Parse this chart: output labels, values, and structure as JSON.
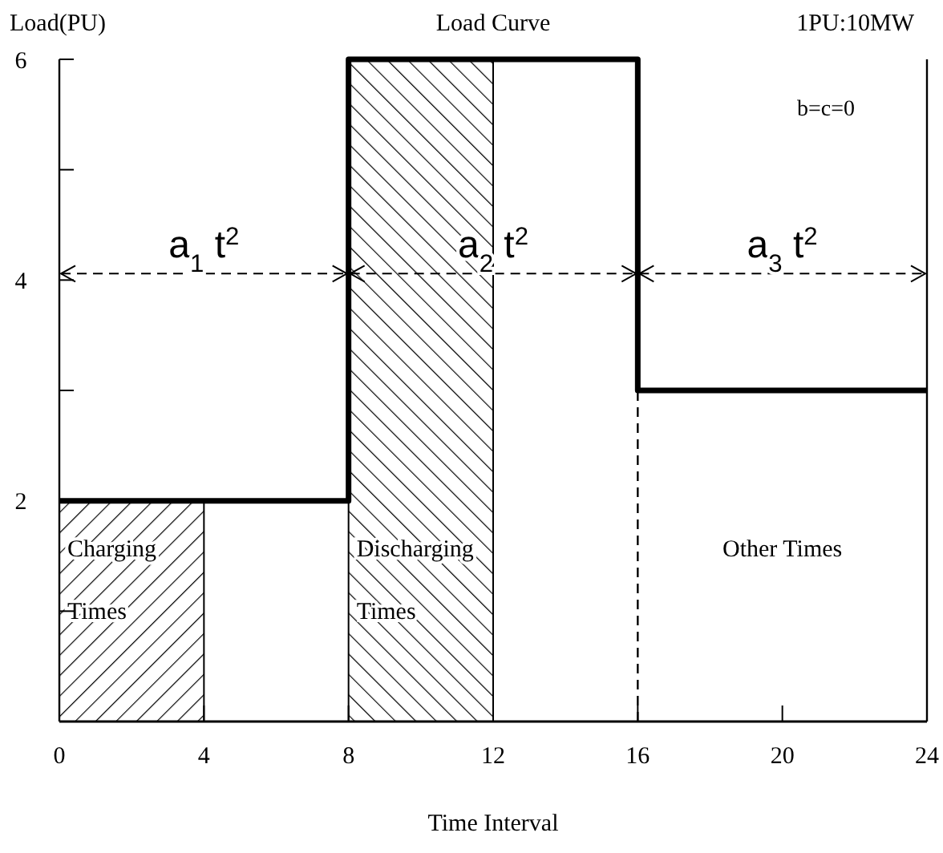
{
  "chart_data": {
    "type": "step",
    "title": "Load Curve",
    "xlabel": "Time Interval",
    "ylabel": "Load(PU)",
    "x": [
      0,
      8,
      16,
      24
    ],
    "series": [
      {
        "color": "#000000",
        "values": [
          2,
          6,
          3,
          3
        ]
      }
    ],
    "xlim": [
      0,
      24
    ],
    "xticks": [
      0,
      4,
      8,
      12,
      16,
      20,
      24
    ],
    "ylim": [
      0,
      6
    ],
    "yticks": [
      {
        "value": 1,
        "label": null
      },
      2,
      {
        "value": 3,
        "label": null
      },
      4,
      {
        "value": 5,
        "label": null
      },
      6
    ],
    "bands": [
      {
        "axis": "x",
        "from": 0,
        "to": 4,
        "label": "Charging Times",
        "color": "#000000"
      },
      {
        "axis": "x",
        "from": 8,
        "to": 12,
        "label": "Discharging Times",
        "color": "#000000"
      }
    ],
    "ref_lines": [
      {
        "axis": "x",
        "value": 16,
        "line_style": "dashed"
      }
    ],
    "annotations": [
      "a$_{1}$ t$^{2}$",
      "a$_{2}$ t$^{2}$",
      "a$_{3}$ t$^{2}$",
      "Other Times",
      "1PU:10MW",
      "b=c=0"
    ],
    "grid": false
  }
}
